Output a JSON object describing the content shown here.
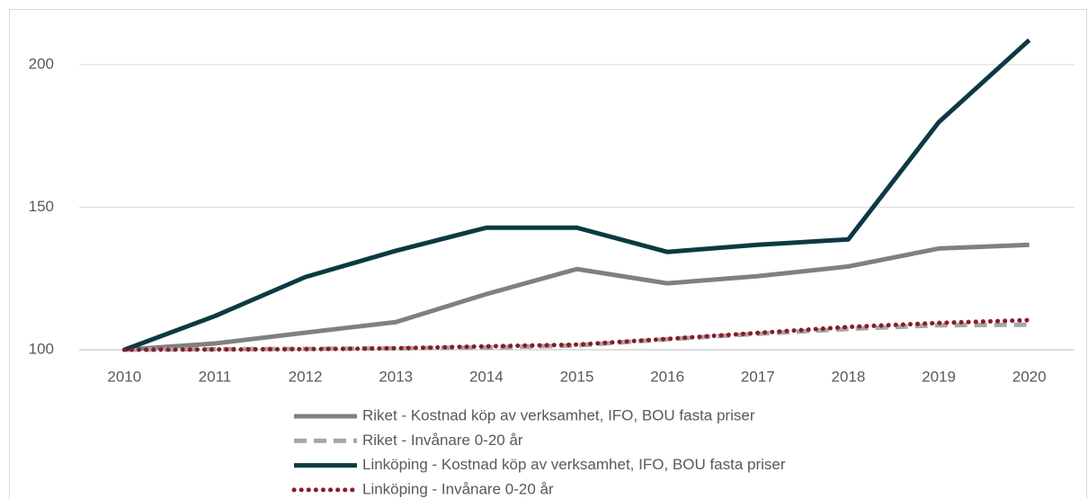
{
  "chart_data": {
    "type": "line",
    "categories": [
      "2010",
      "2011",
      "2012",
      "2013",
      "2014",
      "2015",
      "2016",
      "2017",
      "2018",
      "2019",
      "2020"
    ],
    "series": [
      {
        "name": "Riket - Kostnad köp av verksamhet, IFO, BOU fasta priser",
        "color": "#808080",
        "style": "solid",
        "values": [
          100,
          102.2,
          106,
          109.7,
          119.5,
          128.3,
          123.3,
          125.8,
          129.2,
          135.5,
          136.8
        ]
      },
      {
        "name": "Riket - Invånare 0-20 år",
        "color": "#a6a6a6",
        "style": "dashed",
        "values": [
          100,
          100.2,
          100.3,
          100.5,
          100.8,
          101.5,
          103.7,
          105.6,
          107.3,
          108.6,
          108.8
        ]
      },
      {
        "name": "Linköping - Kostnad köp av verksamhet, IFO, BOU fasta priser",
        "color": "#0b3a42",
        "style": "solid",
        "values": [
          100,
          111.8,
          125.5,
          134.7,
          142.8,
          142.8,
          134.3,
          136.8,
          138.7,
          179.8,
          208.6
        ]
      },
      {
        "name": "Linköping - Invånare 0-20 år",
        "color": "#8b1a2b",
        "style": "dotted",
        "values": [
          100,
          100.1,
          100.2,
          100.5,
          101.2,
          101.8,
          103.8,
          105.9,
          108,
          109.4,
          110.4
        ]
      }
    ],
    "ylim": [
      100,
      220
    ],
    "yticks": [
      100,
      150,
      200
    ],
    "grid": true
  }
}
